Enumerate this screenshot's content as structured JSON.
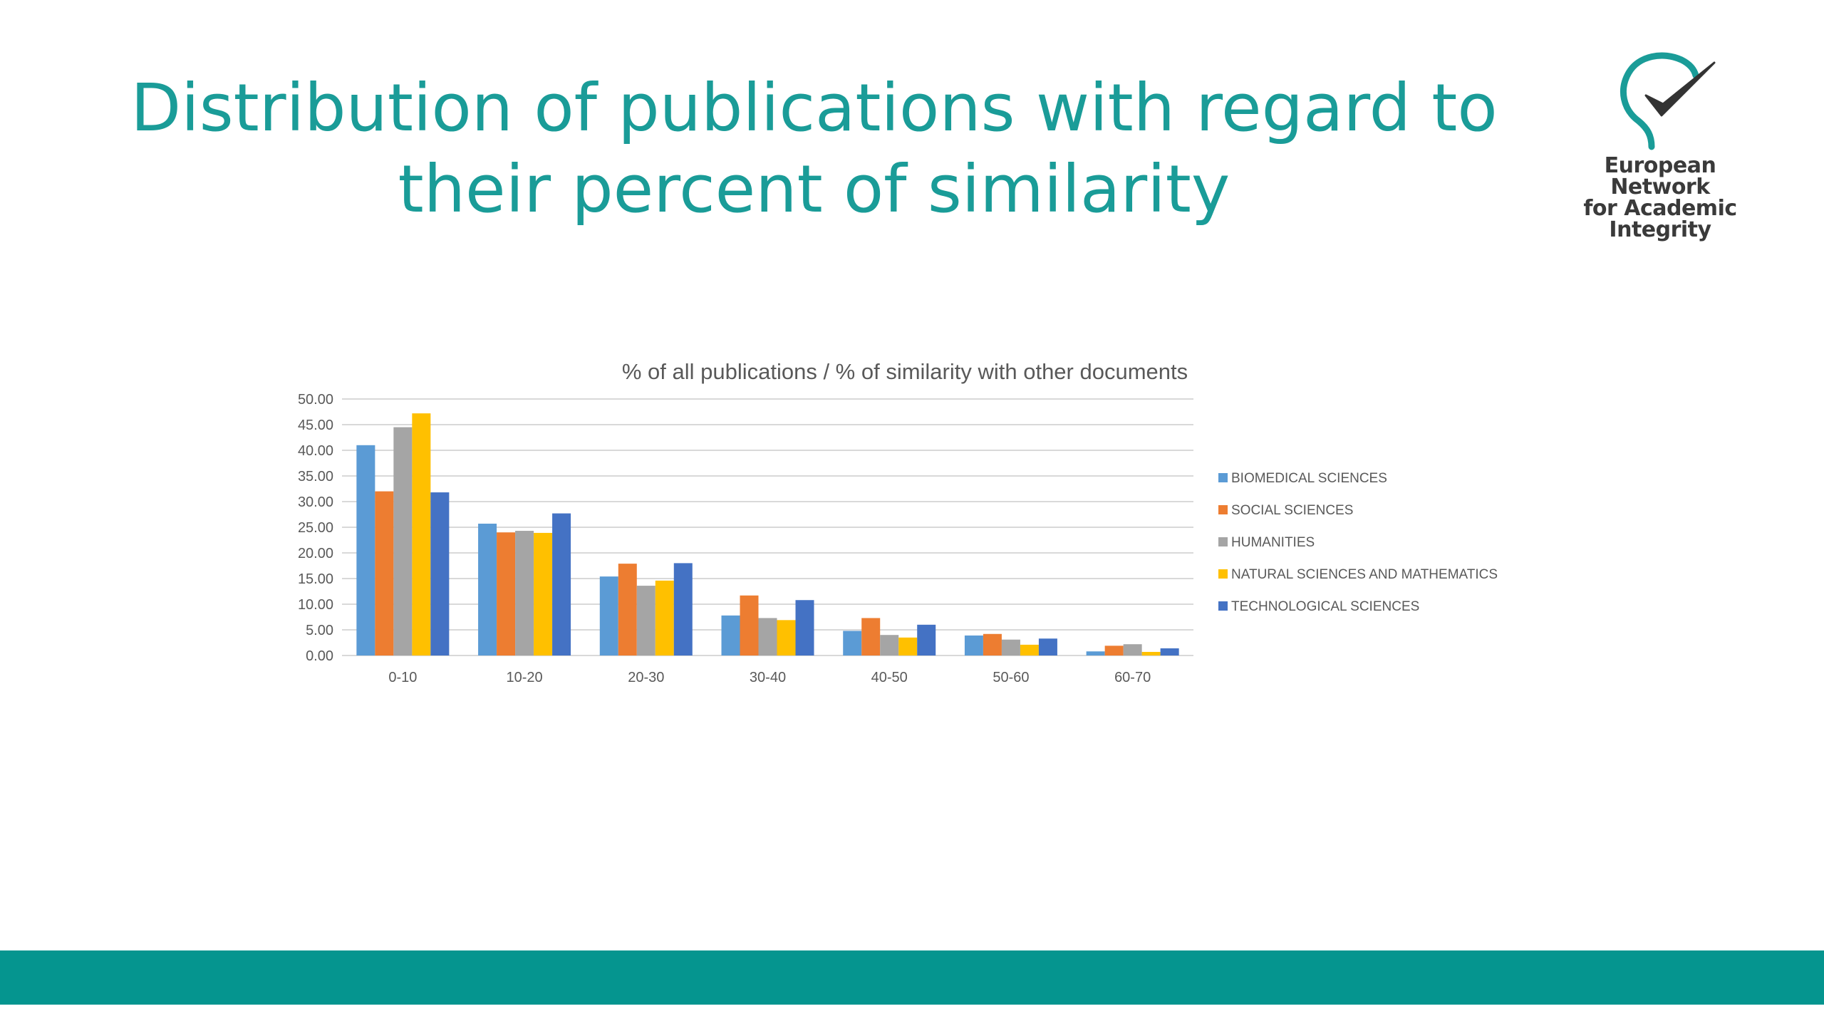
{
  "slide": {
    "title_line1": "Distribution of publications with regard to",
    "title_line2": "their percent of  similarity"
  },
  "logo": {
    "icon": "head-checkmark-icon",
    "line1": "European Network",
    "line2": "for Academic",
    "line3": "Integrity",
    "color": "#1a9c98"
  },
  "footer": {
    "color": "#05958f"
  },
  "chart_data": {
    "type": "bar",
    "title": "% of all publications / % of similarity with other documents",
    "xlabel": "",
    "ylabel": "",
    "categories": [
      "0-10",
      "10-20",
      "20-30",
      "30-40",
      "40-50",
      "50-60",
      "60-70"
    ],
    "series": [
      {
        "name": "BIOMEDICAL SCIENCES",
        "color": "#5b9bd5",
        "values": [
          41.0,
          25.7,
          15.4,
          7.8,
          4.8,
          3.9,
          0.8
        ]
      },
      {
        "name": "SOCIAL SCIENCES",
        "color": "#ed7d31",
        "values": [
          32.0,
          24.0,
          17.9,
          11.7,
          7.3,
          4.2,
          1.9
        ]
      },
      {
        "name": "HUMANITIES",
        "color": "#a5a5a5",
        "values": [
          44.5,
          24.3,
          13.6,
          7.3,
          4.0,
          3.1,
          2.2
        ]
      },
      {
        "name": "NATURAL SCIENCES AND MATHEMATICS",
        "color": "#ffc000",
        "values": [
          47.2,
          23.9,
          14.6,
          6.9,
          3.5,
          2.1,
          0.7
        ]
      },
      {
        "name": "TECHNOLOGICAL SCIENCES",
        "color": "#4472c4",
        "values": [
          31.8,
          27.7,
          18.0,
          10.8,
          6.0,
          3.3,
          1.4
        ]
      }
    ],
    "ylim": [
      0,
      50
    ],
    "yticks": [
      "0.00",
      "5.00",
      "10.00",
      "15.00",
      "20.00",
      "25.00",
      "30.00",
      "35.00",
      "40.00",
      "45.00",
      "50.00"
    ],
    "grid": true,
    "legend_position": "right"
  }
}
